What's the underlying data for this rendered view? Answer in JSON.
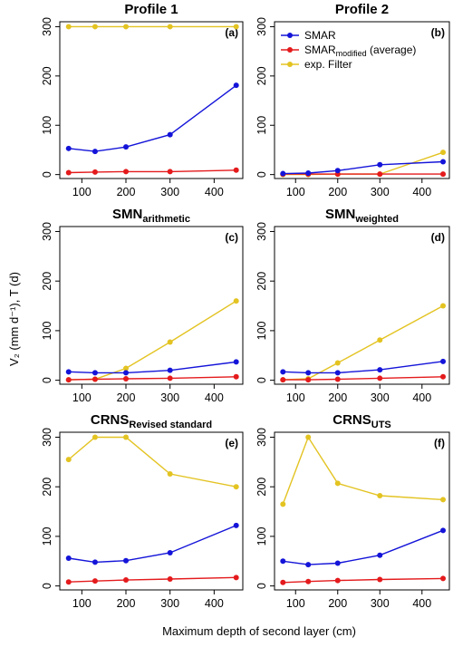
{
  "figure": {
    "ylabel": "V₂ (mm d⁻¹), T (d)",
    "xlabel": "Maximum depth of second layer (cm)",
    "legend": {
      "placement": "panel-2-top",
      "items": [
        {
          "text": "SMAR",
          "color": "#1414d9"
        },
        {
          "base": "SMAR",
          "sub": "modified",
          "tail": " (average)",
          "color": "#e41a1c"
        },
        {
          "text": "exp. Filter",
          "color": "#e3c321"
        }
      ]
    },
    "colors": {
      "SMAR": "#1414d9",
      "SMAR_modified": "#e41a1c",
      "exp_filter": "#e3c321"
    }
  },
  "chart_data": [
    {
      "type": "line",
      "title": "Profile 1",
      "panel_label": "(a)",
      "x": [
        70,
        130,
        200,
        300,
        450
      ],
      "xlim": [
        50,
        465
      ],
      "ylim": [
        -8,
        310
      ],
      "xticks": [
        100,
        200,
        300,
        400
      ],
      "yticks": [
        0,
        100,
        200,
        300
      ],
      "series": [
        {
          "name": "SMAR",
          "values": [
            53,
            47,
            56,
            81,
            181
          ]
        },
        {
          "name": "SMAR modified (average)",
          "values": [
            4,
            5,
            6,
            6,
            9
          ]
        },
        {
          "name": "exp. Filter",
          "values": [
            300,
            300,
            300,
            300,
            300
          ]
        }
      ]
    },
    {
      "type": "line",
      "title": "Profile 2",
      "panel_label": "(b)",
      "x": [
        70,
        130,
        200,
        300,
        450
      ],
      "xlim": [
        50,
        465
      ],
      "ylim": [
        -8,
        310
      ],
      "xticks": [
        100,
        200,
        300,
        400
      ],
      "yticks": [
        0,
        100,
        200,
        300
      ],
      "series": [
        {
          "name": "SMAR",
          "values": [
            2,
            3,
            8,
            20,
            26
          ]
        },
        {
          "name": "SMAR modified (average)",
          "values": [
            1,
            1,
            1,
            1,
            1
          ]
        },
        {
          "name": "exp. Filter",
          "values": [
            0,
            0,
            1,
            1,
            45
          ]
        }
      ]
    },
    {
      "type": "line",
      "title": {
        "base": "SMN",
        "sub": "arithmetic"
      },
      "panel_label": "(c)",
      "x": [
        70,
        130,
        200,
        300,
        450
      ],
      "xlim": [
        50,
        465
      ],
      "ylim": [
        -8,
        310
      ],
      "xticks": [
        100,
        200,
        300,
        400
      ],
      "yticks": [
        0,
        100,
        200,
        300
      ],
      "series": [
        {
          "name": "SMAR",
          "values": [
            17,
            15,
            15,
            20,
            37
          ]
        },
        {
          "name": "SMAR modified (average)",
          "values": [
            1,
            2,
            3,
            4,
            7
          ]
        },
        {
          "name": "exp. Filter",
          "values": [
            1,
            2,
            24,
            77,
            160
          ]
        }
      ]
    },
    {
      "type": "line",
      "title": {
        "base": "SMN",
        "sub": "weighted"
      },
      "panel_label": "(d)",
      "x": [
        70,
        130,
        200,
        300,
        450
      ],
      "xlim": [
        50,
        465
      ],
      "ylim": [
        -8,
        310
      ],
      "xticks": [
        100,
        200,
        300,
        400
      ],
      "yticks": [
        0,
        100,
        200,
        300
      ],
      "series": [
        {
          "name": "SMAR",
          "values": [
            17,
            15,
            15,
            21,
            38
          ]
        },
        {
          "name": "SMAR modified (average)",
          "values": [
            1,
            1,
            2,
            4,
            7
          ]
        },
        {
          "name": "exp. Filter",
          "values": [
            1,
            3,
            35,
            81,
            150
          ]
        }
      ]
    },
    {
      "type": "line",
      "title": {
        "base": "CRNS",
        "sub": "Revised standard"
      },
      "panel_label": "(e)",
      "x": [
        70,
        130,
        200,
        300,
        450
      ],
      "xlim": [
        50,
        465
      ],
      "ylim": [
        -8,
        310
      ],
      "xticks": [
        100,
        200,
        300,
        400
      ],
      "yticks": [
        0,
        100,
        200,
        300
      ],
      "series": [
        {
          "name": "SMAR",
          "values": [
            56,
            48,
            51,
            67,
            122
          ]
        },
        {
          "name": "SMAR modified (average)",
          "values": [
            8,
            10,
            12,
            14,
            17
          ]
        },
        {
          "name": "exp. Filter",
          "values": [
            255,
            300,
            300,
            226,
            200
          ]
        }
      ]
    },
    {
      "type": "line",
      "title": {
        "base": "CRNS",
        "sub": "UTS"
      },
      "panel_label": "(f)",
      "x": [
        70,
        130,
        200,
        300,
        450
      ],
      "xlim": [
        50,
        465
      ],
      "ylim": [
        -8,
        310
      ],
      "xticks": [
        100,
        200,
        300,
        400
      ],
      "yticks": [
        0,
        100,
        200,
        300
      ],
      "series": [
        {
          "name": "SMAR",
          "values": [
            50,
            43,
            46,
            62,
            112
          ]
        },
        {
          "name": "SMAR modified (average)",
          "values": [
            7,
            9,
            11,
            13,
            15
          ]
        },
        {
          "name": "exp. Filter",
          "values": [
            165,
            300,
            207,
            182,
            174
          ]
        }
      ]
    }
  ]
}
